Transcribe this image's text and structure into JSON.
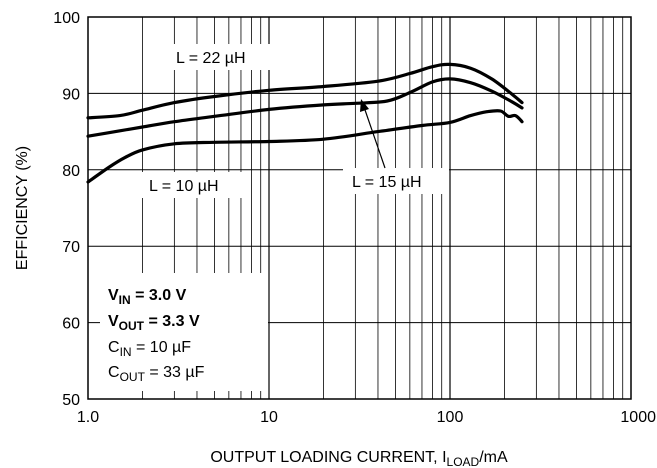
{
  "chart_data": {
    "type": "line",
    "xscale": "log",
    "xlim": [
      1,
      1000
    ],
    "ylim": [
      50,
      100
    ],
    "grid": true,
    "xlabel": {
      "main": "OUTPUT LOADING CURRENT, I",
      "sub": "LOAD",
      "unit": "/mA"
    },
    "ylabel": "EFFICIENCY (%)",
    "xticks": [
      1,
      10,
      100,
      1000
    ],
    "xtick_labels": [
      "1.0",
      "10",
      "100",
      "1000"
    ],
    "yticks": [
      50,
      60,
      70,
      80,
      90,
      100
    ],
    "ytick_labels": [
      "50",
      "60",
      "70",
      "80",
      "90",
      "100"
    ],
    "series": [
      {
        "name": "L = 22 µH",
        "x": [
          1,
          1.5,
          2,
          3,
          5,
          10,
          20,
          40,
          60,
          80,
          100,
          130,
          170,
          220,
          250
        ],
        "y": [
          86.8,
          87.1,
          87.8,
          88.8,
          89.6,
          90.4,
          90.9,
          91.6,
          92.6,
          93.5,
          93.8,
          93.3,
          91.9,
          89.9,
          88.8
        ]
      },
      {
        "name": "L = 15 µH",
        "x": [
          1,
          1.5,
          2,
          3,
          5,
          10,
          20,
          30,
          45,
          60,
          80,
          100,
          130,
          170,
          220,
          250
        ],
        "y": [
          84.4,
          85.1,
          85.6,
          86.3,
          87.0,
          87.9,
          88.5,
          88.7,
          89.0,
          90.1,
          91.5,
          91.9,
          91.4,
          90.3,
          88.9,
          88.1
        ]
      },
      {
        "name": "L = 10 µH",
        "x": [
          1,
          1.3,
          1.6,
          2,
          3,
          5,
          10,
          20,
          40,
          70,
          100,
          130,
          160,
          190,
          210,
          230,
          250
        ],
        "y": [
          78.4,
          80.3,
          81.6,
          82.6,
          83.4,
          83.6,
          83.7,
          84.0,
          85.0,
          85.8,
          86.2,
          87.1,
          87.6,
          87.7,
          87.0,
          87.1,
          86.3
        ]
      }
    ],
    "annotations": {
      "curve_labels": [
        "L = 22 µH",
        "L = 15 µH",
        "L = 10 µH"
      ],
      "conditions": [
        {
          "main": "V",
          "sub": "IN",
          "rest": " = 3.0 V",
          "bold": true
        },
        {
          "main": "V",
          "sub": "OUT",
          "rest": " = 3.3 V",
          "bold": true
        },
        {
          "main": "C",
          "sub": "IN",
          "rest": " = 10 µF",
          "bold": false
        },
        {
          "main": "C",
          "sub": "OUT",
          "rest": " = 33 µF",
          "bold": false
        }
      ]
    }
  }
}
